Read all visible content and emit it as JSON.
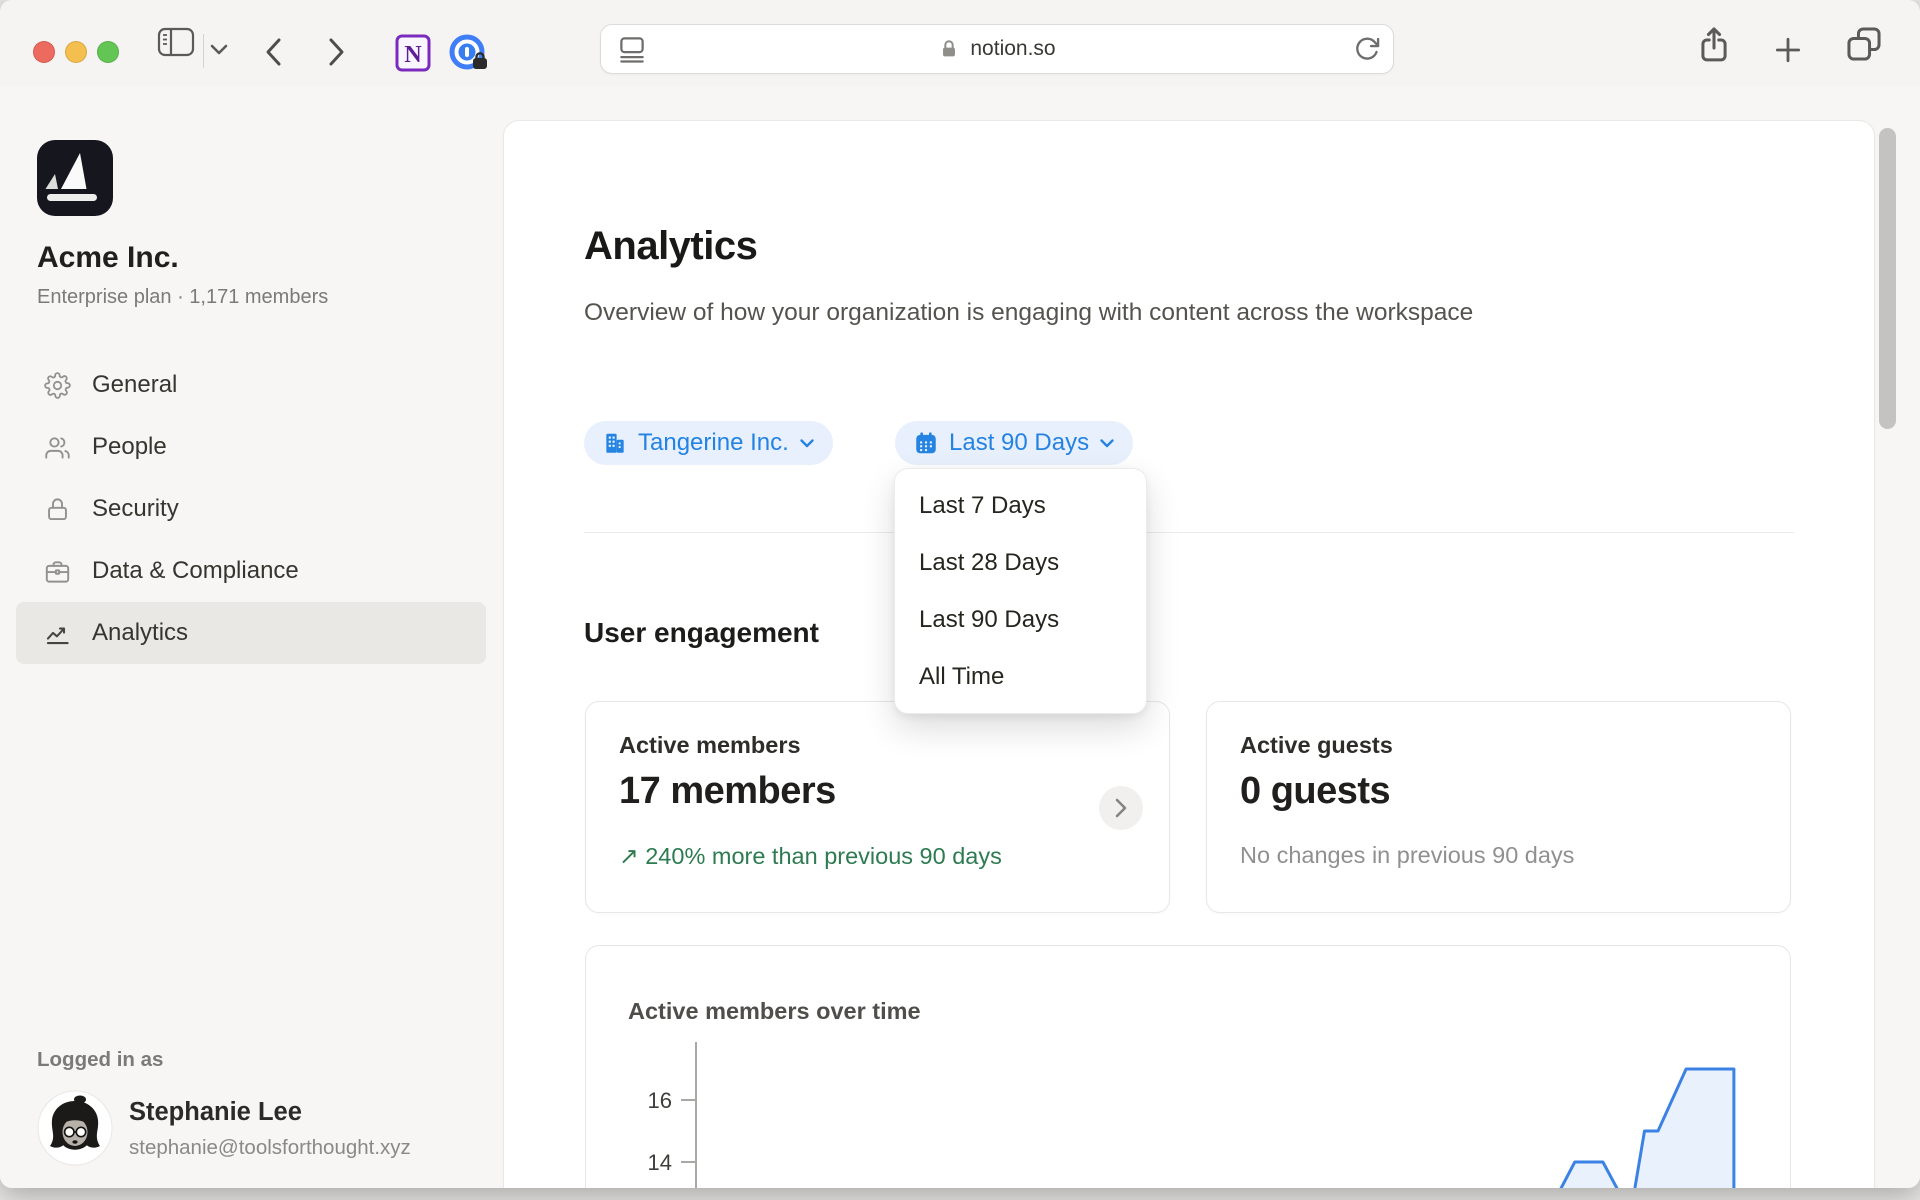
{
  "browser": {
    "url": "notion.so",
    "window_controls": [
      "close",
      "minimize",
      "zoom"
    ],
    "toolbar_icons": [
      "sidebar-toggle",
      "chevron-down",
      "back",
      "forward",
      "notion-extension",
      "onepassword-extension",
      "page-format",
      "lock",
      "reload",
      "share",
      "new-tab",
      "tab-overview"
    ]
  },
  "workspace": {
    "name": "Acme Inc.",
    "plan": "Enterprise plan · 1,171 members"
  },
  "nav": {
    "items": [
      {
        "label": "General",
        "icon": "gear-icon",
        "active": false
      },
      {
        "label": "People",
        "icon": "people-icon",
        "active": false
      },
      {
        "label": "Security",
        "icon": "lock-icon",
        "active": false
      },
      {
        "label": "Data & Compliance",
        "icon": "briefcase-icon",
        "active": false
      },
      {
        "label": "Analytics",
        "icon": "trend-chart-icon",
        "active": true
      }
    ]
  },
  "account": {
    "logged_in_as": "Logged in as",
    "name": "Stephanie Lee",
    "email": "stephanie@toolsforthought.xyz"
  },
  "main": {
    "title": "Analytics",
    "description": "Overview of how your organization is engaging with content across the workspace",
    "org_filter": {
      "label": "Tangerine Inc.",
      "icon": "building-icon"
    },
    "date_filter": {
      "label": "Last 90 Days",
      "icon": "calendar-icon"
    },
    "date_options": [
      "Last 7 Days",
      "Last 28 Days",
      "Last 90 Days",
      "All Time"
    ],
    "selected_date_option": "Last 90 Days",
    "section": "User engagement",
    "cards": [
      {
        "label": "Active members",
        "value": "17 members",
        "delta_icon": "↗",
        "delta": "240% more than previous 90 days",
        "delta_kind": "positive"
      },
      {
        "label": "Active guests",
        "value": "0 guests",
        "delta": "No changes in previous 90 days",
        "delta_kind": "neutral"
      }
    ]
  },
  "chart_data": {
    "type": "area",
    "title": "Active members over time",
    "yticks": [
      16,
      14
    ],
    "ylim_visible": [
      13.1,
      17.6
    ],
    "x_axis": "time across selected Last 90 Days range (x = fraction of plot width); chart bottom is cropped by viewport",
    "grid": false,
    "legend": "none",
    "series": [
      {
        "name": "Active members",
        "points": [
          {
            "x": 0.82,
            "y": 12.4
          },
          {
            "x": 0.845,
            "y": 14
          },
          {
            "x": 0.872,
            "y": 14
          },
          {
            "x": 0.888,
            "y": 13.0
          },
          {
            "x": 0.898,
            "y": 12.2
          },
          {
            "x": 0.912,
            "y": 15
          },
          {
            "x": 0.925,
            "y": 15
          },
          {
            "x": 0.952,
            "y": 17
          },
          {
            "x": 0.998,
            "y": 17
          },
          {
            "x": 0.998,
            "y": 11.5
          }
        ]
      }
    ],
    "line_color": "#3b82e4",
    "fill_color": "#e9f1fc",
    "axis_color": "#a9a8a5"
  },
  "colors": {
    "accent_blue": "#2483e2",
    "pill_bg": "#e7f0fc",
    "positive_green": "#2e7b51",
    "selected_nav_bg": "#e9e8e5",
    "traffic_red": "#ed6a5e",
    "traffic_yellow": "#f5bf4f",
    "traffic_green": "#62c554"
  }
}
